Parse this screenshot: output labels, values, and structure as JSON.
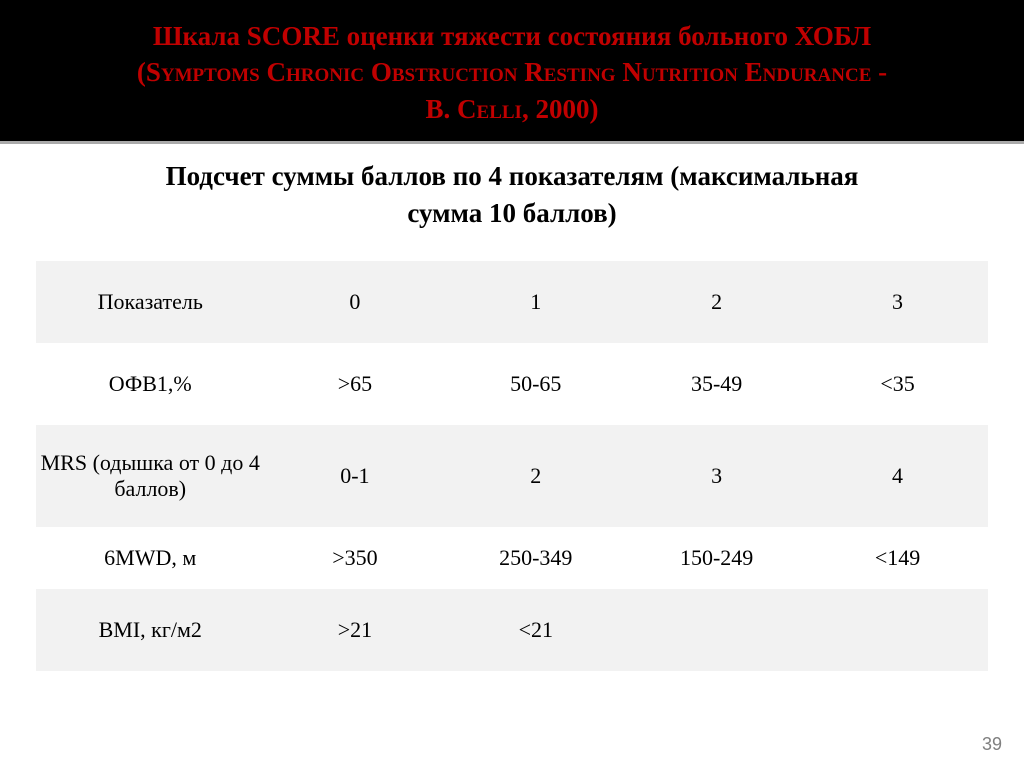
{
  "title": {
    "line1": "Шкала SCORE оценки тяжести состояния больного ХОБЛ",
    "line2": "(Symptoms Chronic Obstruction Resting Nutrition Endurance -",
    "line3": "B. Celli, 2000)",
    "color": "#c00000",
    "bg": "#000000",
    "fontsize": 27
  },
  "subtitle": {
    "line1": "Подсчет суммы баллов по 4 показателям (максимальная",
    "line2": "сумма 10 баллов)",
    "fontsize": 27,
    "color": "#000000"
  },
  "table": {
    "columns": [
      "Показатель",
      "0",
      "1",
      "2",
      "3"
    ],
    "col_widths_pct": [
      24,
      19,
      19,
      19,
      19
    ],
    "row_bg_odd": "#f2f2f2",
    "row_bg_even": "#ffffff",
    "fontsize": 22,
    "rows": [
      [
        "Показатель",
        "0",
        "1",
        "2",
        "3"
      ],
      [
        "ОФВ1,%",
        ">65",
        "50-65",
        "35-49",
        "<35"
      ],
      [
        "MRS (одышка от  0 до 4 баллов)",
        "0-1",
        "2",
        "3",
        "4"
      ],
      [
        "6MWD, м",
        ">350",
        "250-349",
        "150-249",
        "<149"
      ],
      [
        "BMI, кг/м2",
        ">21",
        "<21",
        "",
        ""
      ]
    ]
  },
  "page_number": "39"
}
